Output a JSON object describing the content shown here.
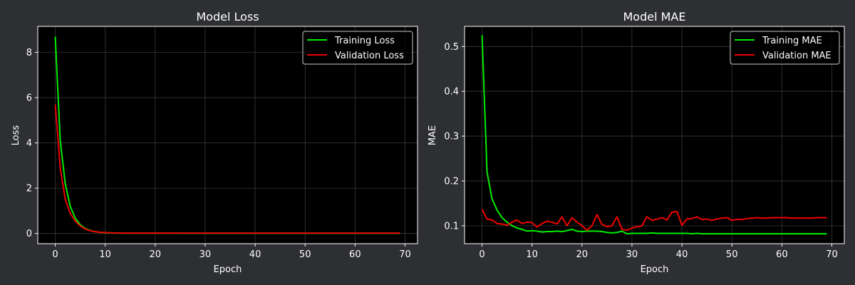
{
  "chart_data": [
    {
      "type": "line",
      "title": "Model Loss",
      "xlabel": "Epoch",
      "ylabel": "Loss",
      "xlim": [
        -3.5,
        72.5
      ],
      "ylim": [
        -0.45,
        9.15
      ],
      "xticks": [
        0,
        10,
        20,
        30,
        40,
        50,
        60,
        70
      ],
      "yticks": [
        0,
        2,
        4,
        6,
        8
      ],
      "grid": true,
      "legend_position": "upper right",
      "series": [
        {
          "name": "Training Loss",
          "color": "#00ee00",
          "x": [
            0,
            1,
            2,
            3,
            4,
            5,
            6,
            7,
            8,
            9,
            10,
            11,
            12,
            13,
            14,
            15,
            16,
            17,
            18,
            19,
            20,
            21,
            22,
            23,
            24,
            25,
            26,
            27,
            28,
            29,
            30,
            31,
            32,
            33,
            34,
            35,
            36,
            37,
            38,
            39,
            40,
            41,
            42,
            43,
            44,
            45,
            46,
            47,
            48,
            49,
            50,
            51,
            52,
            53,
            54,
            55,
            56,
            57,
            58,
            59,
            60,
            61,
            62,
            63,
            64,
            65,
            66,
            67,
            68,
            69
          ],
          "y": [
            8.7,
            4.1,
            2.2,
            1.2,
            0.68,
            0.38,
            0.22,
            0.13,
            0.08,
            0.05,
            0.035,
            0.025,
            0.02,
            0.018,
            0.016,
            0.015,
            0.015,
            0.014,
            0.014,
            0.014,
            0.013,
            0.013,
            0.013,
            0.013,
            0.013,
            0.012,
            0.012,
            0.012,
            0.012,
            0.012,
            0.012,
            0.012,
            0.012,
            0.012,
            0.012,
            0.012,
            0.012,
            0.012,
            0.012,
            0.012,
            0.012,
            0.012,
            0.012,
            0.012,
            0.012,
            0.012,
            0.012,
            0.012,
            0.012,
            0.012,
            0.012,
            0.012,
            0.012,
            0.012,
            0.012,
            0.012,
            0.012,
            0.012,
            0.012,
            0.012,
            0.012,
            0.012,
            0.012,
            0.012,
            0.012,
            0.012,
            0.012,
            0.012,
            0.012,
            0.012
          ]
        },
        {
          "name": "Validation Loss",
          "color": "#ee0000",
          "x": [
            0,
            1,
            2,
            3,
            4,
            5,
            6,
            7,
            8,
            9,
            10,
            11,
            12,
            13,
            14,
            15,
            16,
            17,
            18,
            19,
            20,
            21,
            22,
            23,
            24,
            25,
            26,
            27,
            28,
            29,
            30,
            31,
            32,
            33,
            34,
            35,
            36,
            37,
            38,
            39,
            40,
            41,
            42,
            43,
            44,
            45,
            46,
            47,
            48,
            49,
            50,
            51,
            52,
            53,
            54,
            55,
            56,
            57,
            58,
            59,
            60,
            61,
            62,
            63,
            64,
            65,
            66,
            67,
            68,
            69
          ],
          "y": [
            5.7,
            2.9,
            1.5,
            0.9,
            0.55,
            0.33,
            0.2,
            0.12,
            0.08,
            0.05,
            0.04,
            0.03,
            0.025,
            0.022,
            0.02,
            0.02,
            0.02,
            0.02,
            0.02,
            0.02,
            0.02,
            0.02,
            0.02,
            0.02,
            0.02,
            0.02,
            0.02,
            0.02,
            0.02,
            0.02,
            0.02,
            0.02,
            0.02,
            0.02,
            0.02,
            0.02,
            0.02,
            0.02,
            0.02,
            0.02,
            0.02,
            0.02,
            0.02,
            0.02,
            0.02,
            0.02,
            0.02,
            0.02,
            0.02,
            0.02,
            0.02,
            0.02,
            0.02,
            0.02,
            0.02,
            0.02,
            0.02,
            0.02,
            0.02,
            0.02,
            0.02,
            0.02,
            0.02,
            0.02,
            0.02,
            0.02,
            0.02,
            0.02,
            0.02,
            0.02
          ]
        }
      ]
    },
    {
      "type": "line",
      "title": "Model MAE",
      "xlabel": "Epoch",
      "ylabel": "MAE",
      "xlim": [
        -3.5,
        72.5
      ],
      "ylim": [
        0.06,
        0.545
      ],
      "xticks": [
        0,
        10,
        20,
        30,
        40,
        50,
        60,
        70
      ],
      "yticks": [
        0.1,
        0.2,
        0.3,
        0.4,
        0.5
      ],
      "grid": true,
      "legend_position": "upper right",
      "series": [
        {
          "name": "Training MAE",
          "color": "#00ee00",
          "x": [
            0,
            1,
            2,
            3,
            4,
            5,
            6,
            7,
            8,
            9,
            10,
            11,
            12,
            13,
            14,
            15,
            16,
            17,
            18,
            19,
            20,
            21,
            22,
            23,
            24,
            25,
            26,
            27,
            28,
            29,
            30,
            31,
            32,
            33,
            34,
            35,
            36,
            37,
            38,
            39,
            40,
            41,
            42,
            43,
            44,
            45,
            46,
            47,
            48,
            49,
            50,
            51,
            52,
            53,
            54,
            55,
            56,
            57,
            58,
            59,
            60,
            61,
            62,
            63,
            64,
            65,
            66,
            67,
            68,
            69
          ],
          "y": [
            0.525,
            0.22,
            0.16,
            0.135,
            0.118,
            0.108,
            0.1,
            0.095,
            0.092,
            0.088,
            0.089,
            0.088,
            0.086,
            0.087,
            0.087,
            0.088,
            0.087,
            0.089,
            0.092,
            0.088,
            0.087,
            0.088,
            0.088,
            0.088,
            0.087,
            0.085,
            0.084,
            0.085,
            0.088,
            0.082,
            0.083,
            0.083,
            0.083,
            0.083,
            0.084,
            0.083,
            0.083,
            0.083,
            0.083,
            0.083,
            0.083,
            0.083,
            0.082,
            0.083,
            0.082,
            0.082,
            0.082,
            0.082,
            0.082,
            0.082,
            0.082,
            0.082,
            0.082,
            0.082,
            0.082,
            0.082,
            0.082,
            0.082,
            0.082,
            0.082,
            0.082,
            0.082,
            0.082,
            0.082,
            0.082,
            0.082,
            0.082,
            0.082,
            0.082,
            0.082
          ]
        },
        {
          "name": "Validation MAE",
          "color": "#ee0000",
          "x": [
            0,
            1,
            2,
            3,
            4,
            5,
            6,
            7,
            8,
            9,
            10,
            11,
            12,
            13,
            14,
            15,
            16,
            17,
            18,
            19,
            20,
            21,
            22,
            23,
            24,
            25,
            26,
            27,
            28,
            29,
            30,
            31,
            32,
            33,
            34,
            35,
            36,
            37,
            38,
            39,
            40,
            41,
            42,
            43,
            44,
            45,
            46,
            47,
            48,
            49,
            50,
            51,
            52,
            53,
            54,
            55,
            56,
            57,
            58,
            59,
            60,
            61,
            62,
            63,
            64,
            65,
            66,
            67,
            68,
            69
          ],
          "y": [
            0.137,
            0.115,
            0.113,
            0.105,
            0.104,
            0.101,
            0.108,
            0.113,
            0.105,
            0.108,
            0.107,
            0.097,
            0.105,
            0.11,
            0.108,
            0.104,
            0.12,
            0.1,
            0.118,
            0.108,
            0.1,
            0.09,
            0.1,
            0.125,
            0.103,
            0.098,
            0.1,
            0.12,
            0.092,
            0.09,
            0.095,
            0.098,
            0.1,
            0.12,
            0.112,
            0.115,
            0.118,
            0.113,
            0.13,
            0.132,
            0.101,
            0.115,
            0.116,
            0.12,
            0.114,
            0.115,
            0.112,
            0.115,
            0.117,
            0.118,
            0.112,
            0.114,
            0.114,
            0.116,
            0.117,
            0.118,
            0.117,
            0.117,
            0.118,
            0.118,
            0.118,
            0.118,
            0.117,
            0.117,
            0.117,
            0.117,
            0.117,
            0.118,
            0.118,
            0.118
          ]
        }
      ]
    }
  ]
}
